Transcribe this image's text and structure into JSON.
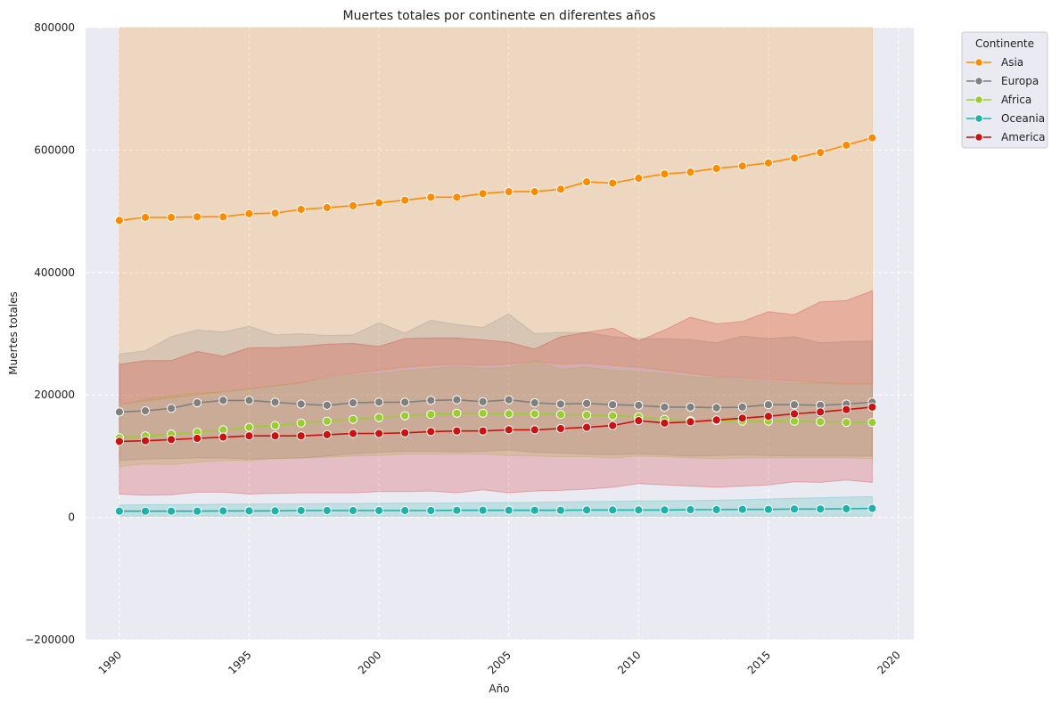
{
  "chart_data": {
    "type": "line",
    "title": "Muertes totales por continente en diferentes años",
    "xlabel": "Año",
    "ylabel": "Muertes totales",
    "xlim": [
      1988.7,
      2020.6
    ],
    "ylim": [
      -200000,
      800000
    ],
    "x_ticks": [
      1990,
      1995,
      2000,
      2005,
      2010,
      2015,
      2020
    ],
    "y_ticks": [
      -200000,
      0,
      200000,
      400000,
      600000,
      800000
    ],
    "y_tick_labels": [
      "−200000",
      "0",
      "200000",
      "400000",
      "600000",
      "800000"
    ],
    "grid": true,
    "legend_title": "Continente",
    "legend_position": "outside-top-right",
    "x": [
      1990,
      1991,
      1992,
      1993,
      1994,
      1995,
      1996,
      1997,
      1998,
      1999,
      2000,
      2001,
      2002,
      2003,
      2004,
      2005,
      2006,
      2007,
      2008,
      2009,
      2010,
      2011,
      2012,
      2013,
      2014,
      2015,
      2016,
      2017,
      2018,
      2019
    ],
    "series": [
      {
        "name": "Asia",
        "color": "#ff8c00",
        "values": [
          485000,
          490000,
          490000,
          491000,
          491000,
          496000,
          497000,
          503000,
          506000,
          509000,
          514000,
          518000,
          523000,
          523000,
          529000,
          532000,
          532000,
          536000,
          548000,
          546000,
          554000,
          561000,
          564000,
          570000,
          574000,
          579000,
          587000,
          596000,
          608000,
          620000
        ],
        "ci_low": [
          800000,
          800000,
          800000,
          800000,
          800000,
          800000,
          800000,
          800000,
          800000,
          800000,
          800000,
          800000,
          800000,
          800000,
          800000,
          800000,
          800000,
          800000,
          800000,
          800000,
          800000,
          800000,
          800000,
          800000,
          800000,
          800000,
          800000,
          800000,
          800000,
          800000
        ],
        "ci_high": [
          800000,
          800000,
          800000,
          800000,
          800000,
          800000,
          800000,
          800000,
          800000,
          800000,
          800000,
          800000,
          800000,
          800000,
          800000,
          800000,
          800000,
          800000,
          800000,
          800000,
          800000,
          800000,
          800000,
          800000,
          800000,
          800000,
          800000,
          800000,
          800000,
          800000
        ],
        "ci_low_real": [
          185000,
          190000,
          195000,
          200000,
          205000,
          210000,
          215000,
          220000,
          230000,
          235000,
          240000,
          245000,
          248000,
          250000,
          248000,
          250000,
          255000,
          250000,
          252000,
          248000,
          245000,
          240000,
          235000,
          230000,
          228000,
          225000,
          222000,
          220000,
          218000,
          218000
        ],
        "ci_high_real": [
          800000,
          800000,
          800000,
          800000,
          800000,
          800000,
          800000,
          800000,
          800000,
          800000,
          800000,
          800000,
          800000,
          800000,
          800000,
          800000,
          800000,
          800000,
          800000,
          800000,
          800000,
          800000,
          800000,
          800000,
          800000,
          800000,
          800000,
          800000,
          800000,
          800000
        ]
      },
      {
        "name": "Europa",
        "color": "#808080",
        "values": [
          172000,
          174000,
          178000,
          187000,
          191000,
          191000,
          188000,
          185000,
          183000,
          187000,
          188000,
          188000,
          191000,
          192000,
          189000,
          192000,
          187000,
          185000,
          186000,
          184000,
          183000,
          180000,
          180000,
          179000,
          180000,
          184000,
          184000,
          183000,
          185000,
          188000
        ],
        "ci_low": [
          93000,
          95000,
          96000,
          97000,
          97000,
          95000,
          96000,
          97000,
          100000,
          104000,
          106000,
          108000,
          108000,
          107000,
          108000,
          110000,
          106000,
          105000,
          103000,
          102000,
          104000,
          102000,
          100000,
          101000,
          102000,
          101000,
          100000,
          100000,
          100000,
          100000
        ],
        "ci_high": [
          267000,
          272000,
          295000,
          306000,
          303000,
          312000,
          298000,
          300000,
          297000,
          298000,
          318000,
          301000,
          322000,
          315000,
          310000,
          332000,
          300000,
          302000,
          302000,
          295000,
          292000,
          292000,
          290000,
          285000,
          296000,
          292000,
          295000,
          285000,
          287000,
          288000
        ]
      },
      {
        "name": "Africa",
        "color": "#9acd32",
        "values": [
          130000,
          133000,
          136000,
          139000,
          143000,
          147000,
          150000,
          154000,
          157000,
          160000,
          163000,
          166000,
          168000,
          170000,
          170000,
          169000,
          169000,
          168000,
          167000,
          166000,
          164000,
          160000,
          158000,
          158000,
          157000,
          157000,
          157000,
          156000,
          155000,
          155000
        ],
        "ci_low": [
          83000,
          87000,
          86000,
          90000,
          93000,
          93000,
          96000,
          97000,
          98000,
          100000,
          101000,
          103000,
          103000,
          103000,
          103000,
          101000,
          100000,
          99000,
          99000,
          97000,
          100000,
          99000,
          97000,
          96000,
          97000,
          97000,
          97000,
          97000,
          97000,
          96000
        ],
        "ci_high": [
          183000,
          193000,
          199000,
          203000,
          205000,
          210000,
          215000,
          220000,
          228000,
          232000,
          235000,
          240000,
          243000,
          247000,
          243000,
          245000,
          255000,
          242000,
          245000,
          240000,
          238000,
          235000,
          230000,
          228000,
          225000,
          222000,
          218000,
          220000,
          217000,
          218000
        ]
      },
      {
        "name": "Oceania",
        "color": "#20b2aa",
        "values": [
          10000,
          10000,
          10000,
          10000,
          10500,
          10500,
          10500,
          11000,
          11000,
          11000,
          11000,
          11000,
          11000,
          11500,
          11500,
          11500,
          11500,
          11500,
          12000,
          12000,
          12000,
          12000,
          12500,
          12500,
          13000,
          13000,
          13500,
          13500,
          14000,
          14500
        ],
        "ci_low": [
          2000,
          2000,
          2000,
          2000,
          2000,
          2000,
          2000,
          2000,
          2000,
          2000,
          2000,
          2000,
          2000,
          2000,
          2000,
          2000,
          2000,
          2000,
          2000,
          2000,
          2000,
          2000,
          2000,
          2000,
          2000,
          2000,
          2000,
          2000,
          2000,
          2000
        ],
        "ci_high": [
          20000,
          20500,
          21000,
          21000,
          21500,
          21500,
          22000,
          22000,
          22500,
          22500,
          23000,
          23000,
          23000,
          23500,
          24000,
          24000,
          24500,
          25000,
          26000,
          26000,
          27000,
          27000,
          27500,
          28000,
          29000,
          30000,
          31000,
          32000,
          33000,
          34000
        ]
      },
      {
        "name": "America",
        "color": "#cc1111",
        "values": [
          124000,
          125000,
          127000,
          129000,
          131000,
          133000,
          133000,
          133000,
          135000,
          137000,
          137000,
          138000,
          140000,
          141000,
          141000,
          143000,
          143000,
          145000,
          147000,
          150000,
          158000,
          154000,
          156000,
          159000,
          162000,
          165000,
          169000,
          172000,
          176000,
          180000
        ],
        "ci_low": [
          38000,
          36000,
          37000,
          41000,
          41000,
          38000,
          39000,
          40000,
          40000,
          40000,
          42000,
          42000,
          43000,
          40000,
          45000,
          40000,
          43000,
          44000,
          46000,
          49000,
          55000,
          53000,
          51000,
          49000,
          51000,
          53000,
          58000,
          57000,
          61000,
          57000
        ],
        "ci_high": [
          250000,
          256000,
          256000,
          271000,
          263000,
          277000,
          277000,
          279000,
          283000,
          284000,
          279000,
          292000,
          293000,
          293000,
          290000,
          286000,
          275000,
          295000,
          302000,
          309000,
          288000,
          306000,
          327000,
          316000,
          320000,
          336000,
          331000,
          352000,
          354000,
          370000
        ]
      }
    ]
  }
}
